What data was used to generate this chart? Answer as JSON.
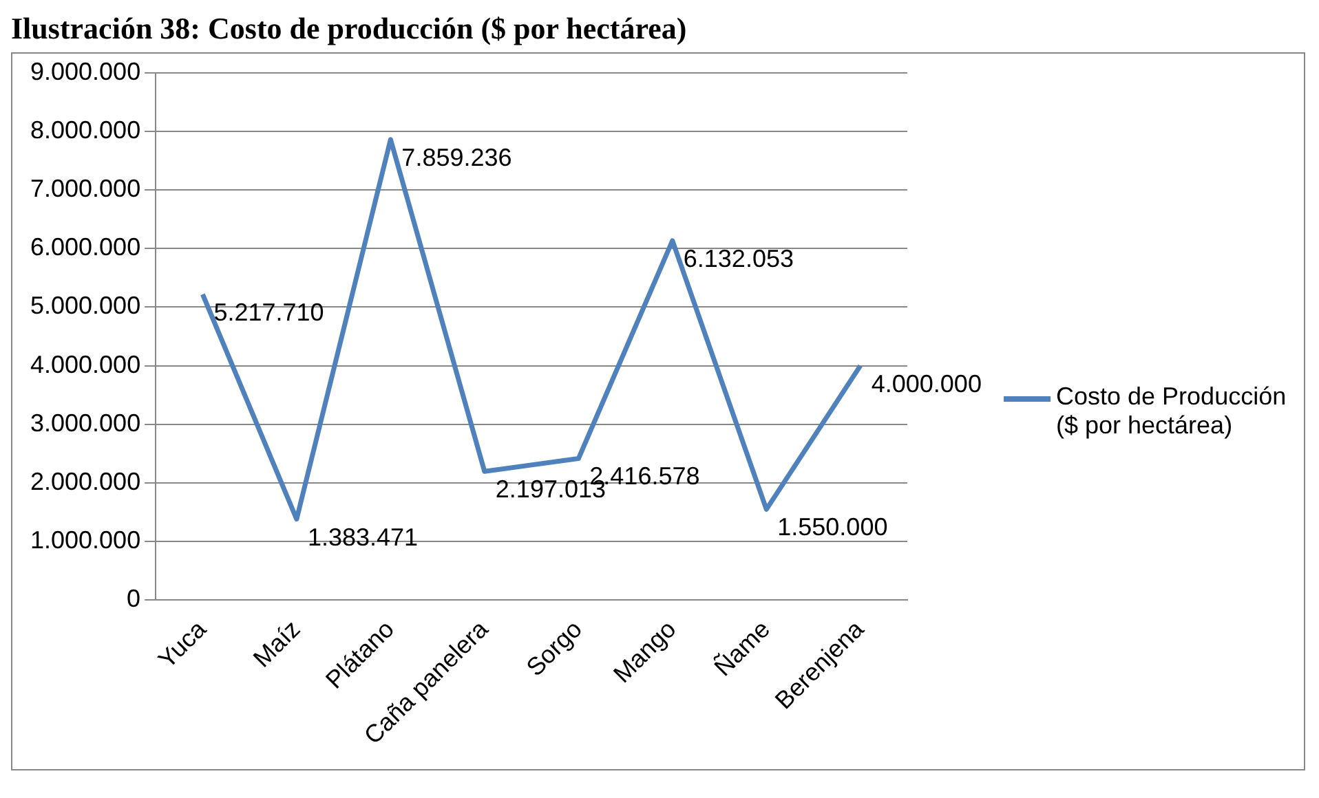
{
  "chart_data": {
    "type": "line",
    "title": "Ilustración 38: Costo de producción ($ por hectárea)",
    "categories": [
      "Yuca",
      "Maíz",
      "Plátano",
      "Caña panelera",
      "Sorgo",
      "Mango",
      "Ñame",
      "Berenjena"
    ],
    "series": [
      {
        "name": "Costo de Producción ($ por hectárea)",
        "color": "#4f81bd",
        "values": [
          5217710,
          1383471,
          7859236,
          2197013,
          2416578,
          6132053,
          1550000,
          4000000
        ],
        "value_labels": [
          "5.217.710",
          "1.383.471",
          "7.859.236",
          "2.197.013",
          "2.416.578",
          "6.132.053",
          "1.550.000",
          "4.000.000"
        ]
      }
    ],
    "ylim": [
      0,
      9000000
    ],
    "yticks": [
      {
        "value": 0,
        "label": "0"
      },
      {
        "value": 1000000,
        "label": "1.000.000"
      },
      {
        "value": 2000000,
        "label": "2.000.000"
      },
      {
        "value": 3000000,
        "label": "3.000.000"
      },
      {
        "value": 4000000,
        "label": "4.000.000"
      },
      {
        "value": 5000000,
        "label": "5.000.000"
      },
      {
        "value": 6000000,
        "label": "6.000.000"
      },
      {
        "value": 7000000,
        "label": "7.000.000"
      },
      {
        "value": 8000000,
        "label": "8.000.000"
      },
      {
        "value": 9000000,
        "label": "9.000.000"
      }
    ],
    "grid": "y",
    "legend": "right",
    "marker": "none",
    "line_style": "solid"
  }
}
